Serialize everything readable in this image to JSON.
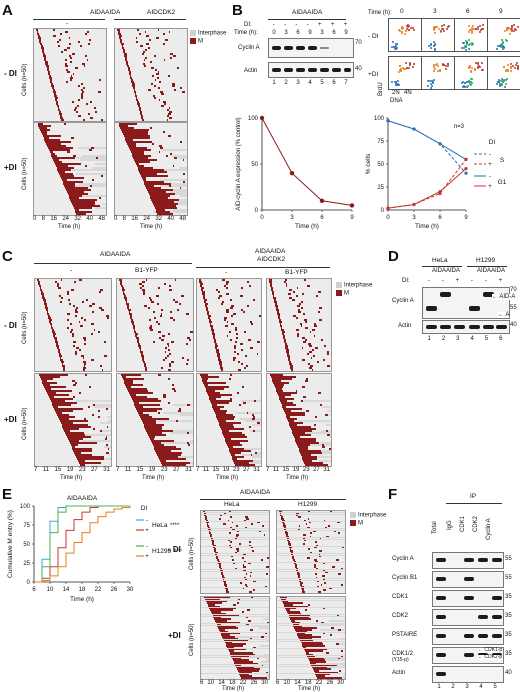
{
  "colors": {
    "interphase": "#d0d0d0",
    "mitosis": "#8b1a1a",
    "red": "#c0392b",
    "blue": "#2a6fb4"
  },
  "panels": {
    "A": {
      "label": "A",
      "header_left": "AIDAAIDA",
      "header_right": "AIDCDK2",
      "sub_left": "-",
      "legend_interphase": "Interphase",
      "legend_m": "M",
      "row_minus": "- DI",
      "row_plus": "+DI",
      "cells_label": "Cells (n=50)",
      "xlabel": "Time (h)",
      "xticks": [
        "0",
        "8",
        "16",
        "24",
        "32",
        "40",
        "48"
      ]
    },
    "B": {
      "label": "B",
      "header": "AIDAAIDA",
      "di_label": "DI:",
      "time_label": "Time (h):",
      "di_signs": [
        "-",
        "-",
        "-",
        "-",
        "+",
        "+",
        "+"
      ],
      "times": [
        "0",
        "3",
        "6",
        "9",
        "3",
        "6",
        "9"
      ],
      "lanes": [
        "1",
        "2",
        "3",
        "4",
        "5",
        "6",
        "7"
      ],
      "cyclinA": "Cyclin A",
      "actin": "Actin",
      "mw_top": "70",
      "mw_actin": "40",
      "facs_time_label": "Time (h):",
      "facs_times": [
        "0",
        "3",
        "6",
        "9"
      ],
      "facs_minus": "- DI",
      "facs_plus": "+DI",
      "facs_y": "BrdU",
      "facs_x": "DNA",
      "facs_2n": "2N",
      "facs_4n": "4N",
      "g1_label": "G1",
      "s_label": "S",
      "n_label": "n=3",
      "di_legend": "DI",
      "chart_ylabel_left": "AID-cyclin A expression (% control)",
      "chart_ylabel_right": "% cells",
      "xlabel": "Time (h)"
    },
    "C": {
      "label": "C",
      "header_left": "AIDAAIDA",
      "header_right_1": "AIDAAIDA",
      "header_right_2": "AIDCDK2",
      "col_minus": "-",
      "col_b1": "B1-YFP",
      "col_minus_2": "-",
      "col_b1_2": "B1-YFP",
      "legend_interphase": "Interphase",
      "legend_m": "M",
      "row_minus": "- DI",
      "row_plus": "+DI",
      "cells_label": "Cells (n=50)",
      "xlabel": "Time (h)",
      "xticks": [
        "7",
        "11",
        "15",
        "19",
        "23",
        "27",
        "31"
      ]
    },
    "D": {
      "label": "D",
      "hela": "HeLa",
      "h1299": "H1299",
      "sub": "AIDAAIDA",
      "di_label": "DI:",
      "signs": [
        "-",
        "-",
        "+",
        "-",
        "-",
        "+"
      ],
      "cyclinA": "Cyclin A",
      "actin": "Actin",
      "aid_a": "AID-A",
      "a": "A",
      "mw_70": "70",
      "mw_55": "55",
      "mw_40": "40",
      "lanes": [
        "1",
        "2",
        "3",
        "4",
        "5",
        "6"
      ]
    },
    "E": {
      "label": "E",
      "title": "AIDAAIDA",
      "ylabel": "Cumulative M entry (%)",
      "xlabel": "Time (h)",
      "di_legend": "DI",
      "hela": "HeLa",
      "h1299": "H1299",
      "stars": "****",
      "minus": "-",
      "plus": "+",
      "raster_title": "AIDAAIDA",
      "col_hela": "HeLa",
      "col_h1299": "H1299",
      "legend_interphase": "Interphase",
      "legend_m": "M",
      "row_minus": "- DI",
      "row_plus": "+DI",
      "cells_label": "Cells (n=50)",
      "xticks": [
        "6",
        "10",
        "14",
        "18",
        "22",
        "26",
        "30"
      ]
    },
    "F": {
      "label": "F",
      "ip": "IP",
      "cols": [
        "Total",
        "IgG",
        "CDK1",
        "CDK2",
        "Cyclin A"
      ],
      "rows": [
        "Cyclin A",
        "Cyclin B1",
        "CDK1",
        "CDK2",
        "PSTAIRE",
        "CDK1/2",
        "Actin"
      ],
      "row_sub": "(Y15-p)",
      "cdk1p": "CDK1-p",
      "cdk2p": "CDK2-p",
      "mws": [
        "55",
        "55",
        "35",
        "35",
        "35",
        "35",
        "40"
      ],
      "lanes": [
        "1",
        "2",
        "3",
        "4",
        "5"
      ]
    }
  },
  "chart_data": [
    {
      "type": "line",
      "title": "",
      "xlabel": "Time (h)",
      "ylabel": "AID-cyclin A expression (% control)",
      "x": [
        0,
        3,
        6,
        9
      ],
      "series": [
        {
          "name": "",
          "values": [
            100,
            40,
            10,
            5
          ]
        }
      ],
      "xlim": [
        0,
        9
      ],
      "ylim": [
        0,
        100
      ],
      "yticks": [
        0,
        50,
        100
      ],
      "xticks": [
        0,
        3,
        6,
        9
      ]
    },
    {
      "type": "line",
      "title": "",
      "xlabel": "Time (h)",
      "ylabel": "% cells",
      "x": [
        0,
        3,
        6,
        9
      ],
      "series": [
        {
          "name": "S -",
          "values": [
            97,
            88,
            72,
            40
          ]
        },
        {
          "name": "S +",
          "values": [
            97,
            88,
            72,
            55
          ]
        },
        {
          "name": "G1 -",
          "values": [
            2,
            6,
            18,
            55
          ]
        },
        {
          "name": "G1 +",
          "values": [
            2,
            6,
            20,
            45
          ]
        }
      ],
      "xlim": [
        0,
        9
      ],
      "ylim": [
        0,
        100
      ],
      "yticks": [
        0,
        25,
        50,
        75,
        100
      ],
      "xticks": [
        0,
        3,
        6,
        9
      ]
    },
    {
      "type": "line",
      "title": "AIDAAIDA",
      "xlabel": "Time (h)",
      "ylabel": "Cumulative M entry (%)",
      "x": [
        6,
        8,
        10,
        12,
        14,
        16,
        18,
        20,
        22,
        24,
        26,
        28,
        30
      ],
      "series": [
        {
          "name": "HeLa -",
          "values": [
            0,
            30,
            80,
            98,
            100,
            100,
            100,
            100,
            100,
            100,
            100,
            100,
            100
          ]
        },
        {
          "name": "HeLa +",
          "values": [
            0,
            5,
            20,
            45,
            68,
            82,
            92,
            98,
            100,
            100,
            100,
            100,
            100
          ]
        },
        {
          "name": "H1299 -",
          "values": [
            0,
            20,
            65,
            92,
            100,
            100,
            100,
            100,
            100,
            100,
            100,
            100,
            100
          ]
        },
        {
          "name": "H1299 +",
          "values": [
            0,
            2,
            8,
            20,
            38,
            52,
            65,
            78,
            86,
            92,
            96,
            98,
            100
          ]
        }
      ],
      "xlim": [
        6,
        30
      ],
      "ylim": [
        0,
        100
      ],
      "yticks": [
        0,
        25,
        50,
        75,
        100
      ],
      "xticks": [
        6,
        10,
        14,
        18,
        22,
        26,
        30
      ]
    }
  ]
}
